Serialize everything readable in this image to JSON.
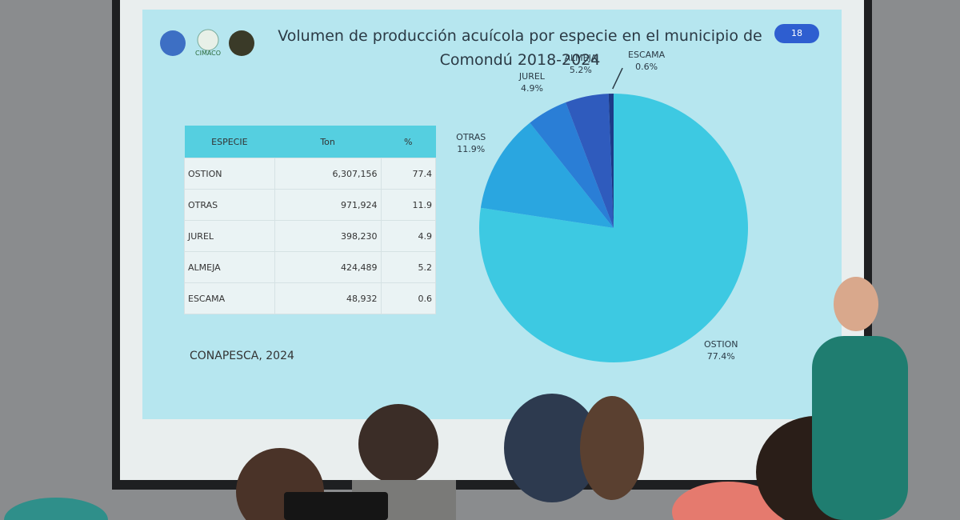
{
  "slide": {
    "title": "Volumen de producción acuícola por especie en el municipio de Comondú 2018-2024",
    "logo_text": "CIMACO",
    "slide_number": "18",
    "source": "CONAPESCA, 2024"
  },
  "table": {
    "header": [
      "ESPECIE",
      "Ton",
      "%"
    ],
    "rows": [
      [
        "OSTION",
        "6,307,156",
        "77.4"
      ],
      [
        "OTRAS",
        "971,924",
        "11.9"
      ],
      [
        "JUREL",
        "398,230",
        "4.9"
      ],
      [
        "ALMEJA",
        "424,489",
        "5.2"
      ],
      [
        "ESCAMA",
        "48,932",
        "0.6"
      ]
    ]
  },
  "chart_data": {
    "type": "pie",
    "categories": [
      "OSTION",
      "OTRAS",
      "JUREL",
      "ALMEJA",
      "ESCAMA"
    ],
    "values": [
      77.4,
      11.9,
      4.9,
      5.2,
      0.6
    ],
    "value_labels": [
      "77.4%",
      "11.9%",
      "4.9%",
      "5.2%",
      "0.6%"
    ],
    "colors": [
      "#3dc9e2",
      "#2aa6e0",
      "#2a7ed6",
      "#2f5bbd",
      "#1d3a88"
    ]
  }
}
